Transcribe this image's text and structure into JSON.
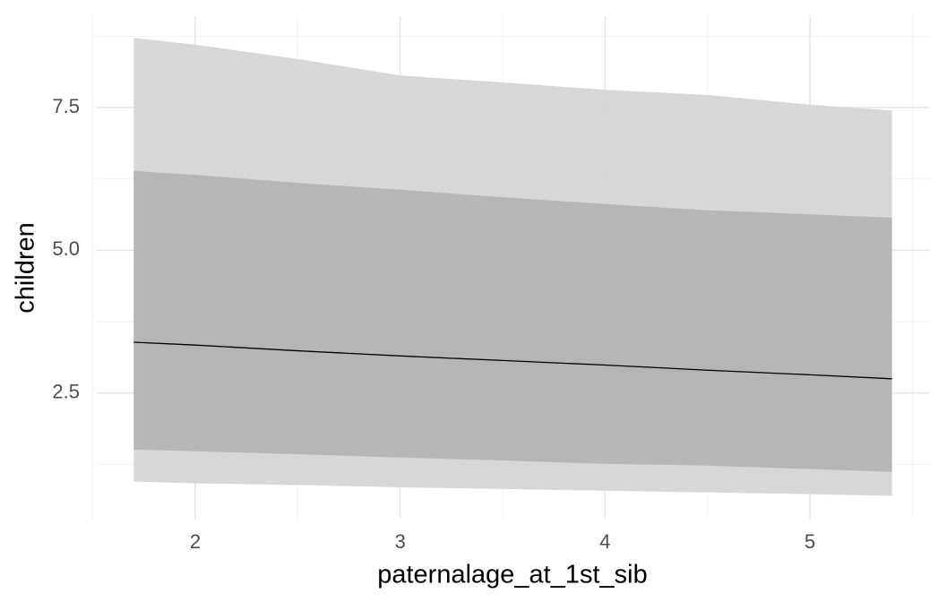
{
  "chart_data": {
    "type": "line",
    "x_label": "paternalage_at_1st_sib",
    "y_label": "children",
    "x": [
      1.7,
      2,
      2.5,
      3,
      3.5,
      4,
      4.5,
      5,
      5.4
    ],
    "bands": [
      {
        "color": "#d3d3d3",
        "upper": [
          8.72,
          8.6,
          8.35,
          8.06,
          7.94,
          7.81,
          7.72,
          7.55,
          7.45
        ],
        "lower": [
          0.95,
          0.92,
          0.89,
          0.85,
          0.82,
          0.79,
          0.76,
          0.73,
          0.7
        ]
      },
      {
        "color": "#b3b3b3",
        "upper": [
          6.39,
          6.32,
          6.18,
          6.06,
          5.93,
          5.81,
          5.7,
          5.63,
          5.57
        ],
        "lower": [
          1.51,
          1.48,
          1.43,
          1.37,
          1.32,
          1.26,
          1.23,
          1.17,
          1.12
        ]
      }
    ],
    "series": [
      {
        "color": "#000000",
        "values": [
          3.39,
          3.34,
          3.24,
          3.15,
          3.07,
          2.99,
          2.9,
          2.82,
          2.75
        ]
      }
    ],
    "xlim": [
      1.515,
      5.585
    ],
    "ylim": [
      0.3,
      9.1
    ],
    "xticks": [
      2,
      3,
      4,
      5
    ],
    "yticks": [
      2.5,
      {
        "value": 5,
        "label": "5.0"
      },
      7.5
    ],
    "x_minor_ticks": [
      1.5,
      2.5,
      3.5,
      4.5,
      5.5
    ],
    "y_minor_ticks": [
      1.25,
      3.75,
      6.25,
      8.75
    ],
    "grid": true
  }
}
